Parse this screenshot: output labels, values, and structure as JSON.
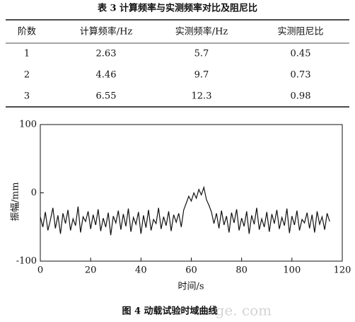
{
  "table": {
    "title": "表 3   计算频率与实测频率对比及阻尼比",
    "header": [
      "阶数",
      "计算频率/Hz",
      "实测频率/Hz",
      "实测阻尼比"
    ],
    "rows": [
      [
        "1",
        "2.63",
        "5.7",
        "0.45"
      ],
      [
        "2",
        "4.46",
        "9.7",
        "0.73"
      ],
      [
        "3",
        "6.55",
        "12.3",
        "0.98"
      ]
    ]
  },
  "chart_data": {
    "type": "line",
    "xlabel": "时间/s",
    "ylabel": "振幅/mm",
    "xlim": [
      0,
      120
    ],
    "ylim": [
      -100,
      100
    ],
    "xticks": [
      0,
      20,
      40,
      60,
      80,
      100,
      120
    ],
    "yticks": [
      -100,
      0,
      100
    ],
    "color": "#111111",
    "x": [
      0,
      1,
      2,
      3,
      4,
      5,
      6,
      7,
      8,
      9,
      10,
      11,
      12,
      13,
      14,
      15,
      16,
      17,
      18,
      19,
      20,
      21,
      22,
      23,
      24,
      25,
      26,
      27,
      28,
      29,
      30,
      31,
      32,
      33,
      34,
      35,
      36,
      37,
      38,
      39,
      40,
      41,
      42,
      43,
      44,
      45,
      46,
      47,
      48,
      49,
      50,
      51,
      52,
      53,
      54,
      55,
      56,
      57,
      58,
      59,
      60,
      61,
      62,
      63,
      64,
      65,
      66,
      67,
      68,
      69,
      70,
      71,
      72,
      73,
      74,
      75,
      76,
      77,
      78,
      79,
      80,
      81,
      82,
      83,
      84,
      85,
      86,
      87,
      88,
      89,
      90,
      91,
      92,
      93,
      94,
      95,
      96,
      97,
      98,
      99,
      100,
      101,
      102,
      103,
      104,
      105,
      106,
      107,
      108,
      109,
      110,
      111,
      112,
      113,
      114,
      115
    ],
    "values": [
      -35,
      -50,
      -28,
      -55,
      -40,
      -22,
      -52,
      -33,
      -60,
      -30,
      -45,
      -25,
      -55,
      -38,
      -48,
      -20,
      -58,
      -35,
      -42,
      -27,
      -53,
      -32,
      -47,
      -24,
      -56,
      -37,
      -50,
      -29,
      -62,
      -34,
      -44,
      -26,
      -54,
      -31,
      -49,
      -23,
      -57,
      -36,
      -46,
      -28,
      -60,
      -33,
      -51,
      -25,
      -55,
      -39,
      -45,
      -22,
      -53,
      -35,
      -48,
      -27,
      -56,
      -32,
      -43,
      -30,
      -50,
      -25,
      -15,
      -5,
      -12,
      0,
      -8,
      5,
      -3,
      8,
      -10,
      -18,
      -28,
      -45,
      -30,
      -52,
      -26,
      -47,
      -34,
      -58,
      -29,
      -44,
      -24,
      -55,
      -37,
      -49,
      -27,
      -60,
      -33,
      -46,
      -22,
      -54,
      -38,
      -50,
      -28,
      -57,
      -31,
      -45,
      -25,
      -53,
      -36,
      -48,
      -23,
      -59,
      -34,
      -47,
      -26,
      -55,
      -39,
      -44,
      -29,
      -52,
      -32,
      -58,
      -27,
      -46,
      -35,
      -54,
      -30,
      -42
    ]
  },
  "figure_caption": "图 4   动载试验时域曲线",
  "watermark": "ridge. com"
}
